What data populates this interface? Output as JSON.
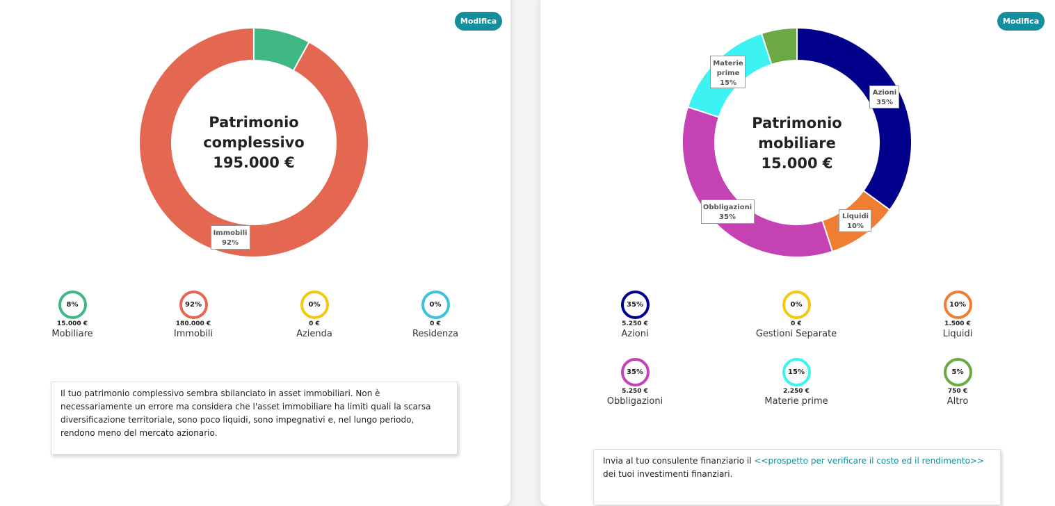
{
  "left_panel": {
    "modify_label": "Modifica",
    "center": {
      "line1": "Patrimonio",
      "line2": "complessivo",
      "line3": "195.000 €"
    },
    "slice_label": {
      "name": "Immobili",
      "pct": "92%"
    },
    "legend": [
      {
        "pct": "8%",
        "amount": "15.000 €",
        "name": "Mobiliare",
        "color": "#3fb884"
      },
      {
        "pct": "92%",
        "amount": "180.000 €",
        "name": "Immobili",
        "color": "#e46752"
      },
      {
        "pct": "0%",
        "amount": "0 €",
        "name": "Azienda",
        "color": "#f2c811"
      },
      {
        "pct": "0%",
        "amount": "0 €",
        "name": "Residenza",
        "color": "#3dc2d9"
      }
    ],
    "note": "Il tuo patrimonio complessivo sembra sbilanciato in asset immobiliari. Non è necessariamente un errore ma considera che l'asset immobiliare ha limiti quali la scarsa diversificazione territoriale, sono poco liquidi, sono impegnativi e, nel lungo periodo, rendono meno del mercato azionario."
  },
  "right_panel": {
    "modify_label": "Modifica",
    "center": {
      "line1": "Patrimonio",
      "line2": "mobiliare",
      "line3": "15.000 €"
    },
    "slice_labels": {
      "azioni": {
        "name": "Azioni",
        "pct": "35%"
      },
      "liquidi": {
        "name": "Liquidi",
        "pct": "10%"
      },
      "obbligazioni": {
        "name": "Obbligazioni",
        "pct": "35%"
      },
      "materie_l1": "Materie",
      "materie_l2": "prime",
      "materie_pct": "15%"
    },
    "legend": [
      {
        "pct": "35%",
        "amount": "5.250 €",
        "name": "Azioni",
        "color": "#00008b"
      },
      {
        "pct": "0%",
        "amount": "0 €",
        "name": "Gestioni Separate",
        "color": "#f2c811"
      },
      {
        "pct": "10%",
        "amount": "1.500 €",
        "name": "Liquidi",
        "color": "#ef7d32"
      },
      {
        "pct": "35%",
        "amount": "5.250 €",
        "name": "Obbligazioni",
        "color": "#c442b4"
      },
      {
        "pct": "15%",
        "amount": "2.250 €",
        "name": "Materie prime",
        "color": "#3cf2f2"
      },
      {
        "pct": "5%",
        "amount": "750 €",
        "name": "Altro",
        "color": "#6ca946"
      }
    ],
    "note": {
      "before": "Invia al tuo consulente finanziario il ",
      "link": "<<prospetto per verificare il costo ed il rendimento>>",
      "after": " dei tuoi investimenti finanziari."
    }
  },
  "chart_data": [
    {
      "type": "pie",
      "title": "Patrimonio complessivo",
      "categories": [
        "Mobiliare",
        "Immobili"
      ],
      "values": [
        8,
        92
      ],
      "colors": [
        "#3fb884",
        "#e46752"
      ]
    },
    {
      "type": "pie",
      "title": "Patrimonio mobiliare",
      "categories": [
        "Azioni",
        "Liquidi",
        "Obbligazioni",
        "Materie prime",
        "Altro"
      ],
      "values": [
        35,
        10,
        35,
        15,
        5
      ],
      "colors": [
        "#00008b",
        "#ef7d32",
        "#c442b4",
        "#3cf2f2",
        "#6ca946"
      ]
    }
  ]
}
